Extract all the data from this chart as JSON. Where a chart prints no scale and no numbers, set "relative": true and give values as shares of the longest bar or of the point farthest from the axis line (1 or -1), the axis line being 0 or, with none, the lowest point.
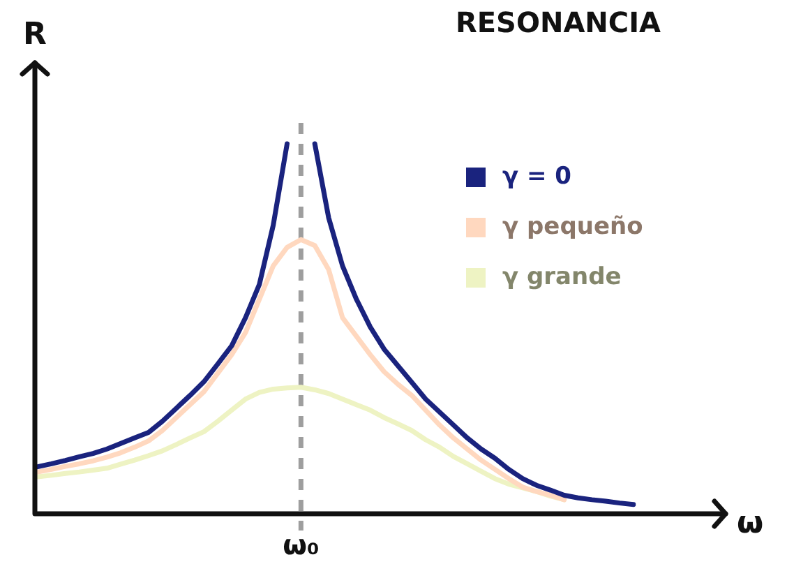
{
  "chart_data": {
    "type": "line",
    "title": "RESONANCIA",
    "xlabel": "ω",
    "ylabel": "R",
    "relative": true,
    "grid": false,
    "legend": "top right",
    "marker": "none",
    "line_style": "solid",
    "annotations": [
      "ω₀"
    ],
    "categories": [
      null,
      null,
      null,
      null,
      null,
      null,
      null,
      null,
      null,
      null,
      null,
      null,
      null,
      null,
      null,
      null,
      null,
      null,
      null,
      null,
      null,
      null,
      null,
      null,
      null,
      null,
      null,
      null,
      null,
      null,
      null,
      null,
      null,
      null,
      null,
      null,
      null,
      null,
      null,
      null,
      null,
      null,
      null,
      null
    ],
    "series": [
      {
        "name": "γ = 0",
        "color": "#1a237e",
        "values": [
          0.127,
          0.135,
          0.144,
          0.154,
          0.163,
          0.175,
          0.19,
          0.205,
          0.22,
          0.25,
          0.285,
          0.32,
          0.357,
          0.405,
          0.454,
          0.53,
          0.62,
          0.78,
          1,
          null,
          1,
          0.8,
          0.67,
          0.58,
          0.505,
          0.445,
          0.4,
          0.355,
          0.31,
          0.275,
          0.24,
          0.205,
          0.175,
          0.15,
          0.12,
          0.095,
          0.077,
          0.064,
          0.05,
          0.043,
          0.038,
          0.034,
          0.029,
          0.025
        ]
      },
      {
        "name": "γ pequeño",
        "color": "#ffd8bf",
        "values": [
          0.113,
          0.12,
          0.128,
          0.135,
          0.143,
          0.153,
          0.165,
          0.18,
          0.197,
          0.225,
          0.26,
          0.295,
          0.33,
          0.38,
          0.43,
          0.49,
          0.58,
          0.67,
          0.72,
          0.741,
          0.725,
          0.66,
          0.53,
          0.48,
          0.43,
          0.384,
          0.35,
          0.32,
          0.28,
          0.24,
          0.205,
          0.175,
          0.145,
          0.12,
          0.095,
          0.072,
          0.06,
          0.05,
          0.038,
          null,
          null,
          null,
          null,
          null
        ]
      },
      {
        "name": "γ grande",
        "color": "#eef3c3",
        "values": [
          0.1,
          0.104,
          0.109,
          0.113,
          0.118,
          0.123,
          0.134,
          0.145,
          0.157,
          0.17,
          0.187,
          0.205,
          0.222,
          0.25,
          0.28,
          0.31,
          0.328,
          0.337,
          0.34,
          0.342,
          0.335,
          0.325,
          0.31,
          0.295,
          0.28,
          0.26,
          0.243,
          0.225,
          0.2,
          0.18,
          0.155,
          0.135,
          0.115,
          0.095,
          0.08,
          0.07,
          0.06,
          0.048,
          0.038,
          null,
          null,
          null,
          null,
          null
        ]
      }
    ]
  }
}
